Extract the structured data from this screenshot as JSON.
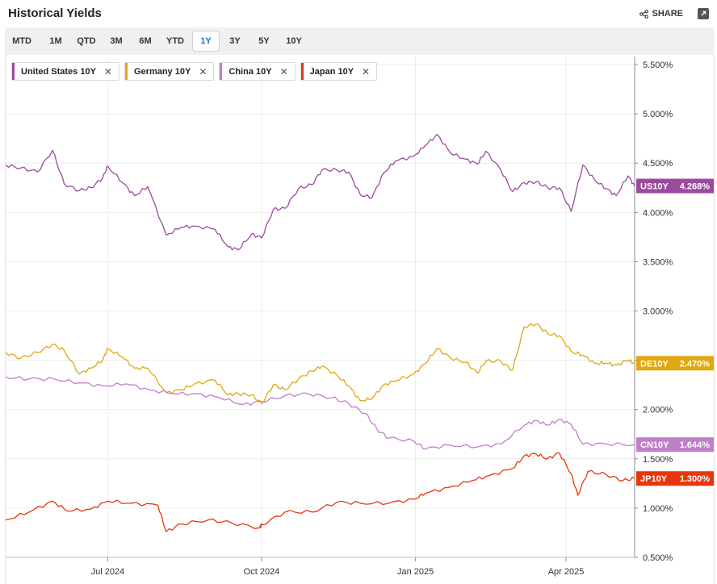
{
  "header": {
    "title": "Historical Yields",
    "share_label": "SHARE"
  },
  "toolbar": {
    "ranges": [
      "MTD",
      "1M",
      "QTD",
      "3M",
      "6M",
      "YTD",
      "1Y",
      "3Y",
      "5Y",
      "10Y"
    ],
    "active": "1Y"
  },
  "legend": [
    {
      "label": "United States 10Y",
      "color": "#9b4a9e"
    },
    {
      "label": "Germany 10Y",
      "color": "#e0a811"
    },
    {
      "label": "China 10Y",
      "color": "#c07fc8"
    },
    {
      "label": "Japan 10Y",
      "color": "#e8360c"
    }
  ],
  "chart_data": {
    "type": "line",
    "x_range": [
      "2024-05-01",
      "2025-05-12"
    ],
    "x_ticks": [
      {
        "date": "2024-07-01",
        "label": "Jul 2024"
      },
      {
        "date": "2024-10-01",
        "label": "Oct 2024"
      },
      {
        "date": "2025-01-01",
        "label": "Jan 2025"
      },
      {
        "date": "2025-04-01",
        "label": "Apr 2025"
      }
    ],
    "y_range": [
      0.5,
      5.5
    ],
    "y_ticks": [
      "0.500%",
      "1.000%",
      "1.500%",
      "2.000%",
      "2.500%",
      "3.000%",
      "3.500%",
      "4.000%",
      "4.500%",
      "5.000%",
      "5.500%"
    ],
    "grid": true,
    "series": [
      {
        "name": "United States 10Y",
        "tag": "US10Y",
        "last_label": "4.268%",
        "last": 4.268,
        "color": "#9b4a9e",
        "points": [
          [
            "2024-05-01",
            4.48
          ],
          [
            "2024-05-10",
            4.45
          ],
          [
            "2024-05-20",
            4.41
          ],
          [
            "2024-05-29",
            4.63
          ],
          [
            "2024-06-05",
            4.29
          ],
          [
            "2024-06-14",
            4.22
          ],
          [
            "2024-06-21",
            4.25
          ],
          [
            "2024-06-28",
            4.35
          ],
          [
            "2024-07-01",
            4.47
          ],
          [
            "2024-07-10",
            4.3
          ],
          [
            "2024-07-17",
            4.17
          ],
          [
            "2024-07-25",
            4.26
          ],
          [
            "2024-08-05",
            3.77
          ],
          [
            "2024-08-14",
            3.85
          ],
          [
            "2024-08-22",
            3.86
          ],
          [
            "2024-09-03",
            3.83
          ],
          [
            "2024-09-11",
            3.65
          ],
          [
            "2024-09-17",
            3.62
          ],
          [
            "2024-09-25",
            3.78
          ],
          [
            "2024-10-01",
            3.74
          ],
          [
            "2024-10-08",
            4.03
          ],
          [
            "2024-10-15",
            4.04
          ],
          [
            "2024-10-23",
            4.24
          ],
          [
            "2024-10-31",
            4.28
          ],
          [
            "2024-11-06",
            4.43
          ],
          [
            "2024-11-15",
            4.43
          ],
          [
            "2024-11-22",
            4.41
          ],
          [
            "2024-11-29",
            4.18
          ],
          [
            "2024-12-06",
            4.15
          ],
          [
            "2024-12-13",
            4.4
          ],
          [
            "2024-12-20",
            4.52
          ],
          [
            "2024-12-31",
            4.57
          ],
          [
            "2025-01-07",
            4.68
          ],
          [
            "2025-01-14",
            4.79
          ],
          [
            "2025-01-22",
            4.6
          ],
          [
            "2025-01-31",
            4.54
          ],
          [
            "2025-02-07",
            4.49
          ],
          [
            "2025-02-12",
            4.62
          ],
          [
            "2025-02-21",
            4.43
          ],
          [
            "2025-02-28",
            4.21
          ],
          [
            "2025-03-07",
            4.3
          ],
          [
            "2025-03-14",
            4.31
          ],
          [
            "2025-03-21",
            4.25
          ],
          [
            "2025-03-28",
            4.25
          ],
          [
            "2025-04-04",
            4.01
          ],
          [
            "2025-04-11",
            4.48
          ],
          [
            "2025-04-18",
            4.33
          ],
          [
            "2025-04-25",
            4.24
          ],
          [
            "2025-05-01",
            4.17
          ],
          [
            "2025-05-08",
            4.37
          ],
          [
            "2025-05-12",
            4.268
          ]
        ]
      },
      {
        "name": "Germany 10Y",
        "tag": "DE10Y",
        "last_label": "2.470%",
        "last": 2.47,
        "color": "#e0a811",
        "points": [
          [
            "2024-05-01",
            2.58
          ],
          [
            "2024-05-10",
            2.52
          ],
          [
            "2024-05-20",
            2.58
          ],
          [
            "2024-05-29",
            2.66
          ],
          [
            "2024-06-05",
            2.6
          ],
          [
            "2024-06-14",
            2.36
          ],
          [
            "2024-06-21",
            2.42
          ],
          [
            "2024-06-28",
            2.5
          ],
          [
            "2024-07-01",
            2.62
          ],
          [
            "2024-07-10",
            2.53
          ],
          [
            "2024-07-17",
            2.42
          ],
          [
            "2024-07-25",
            2.42
          ],
          [
            "2024-08-05",
            2.17
          ],
          [
            "2024-08-14",
            2.2
          ],
          [
            "2024-08-22",
            2.26
          ],
          [
            "2024-09-03",
            2.3
          ],
          [
            "2024-09-11",
            2.15
          ],
          [
            "2024-09-17",
            2.16
          ],
          [
            "2024-09-25",
            2.15
          ],
          [
            "2024-10-01",
            2.06
          ],
          [
            "2024-10-08",
            2.25
          ],
          [
            "2024-10-15",
            2.2
          ],
          [
            "2024-10-23",
            2.31
          ],
          [
            "2024-10-31",
            2.39
          ],
          [
            "2024-11-06",
            2.44
          ],
          [
            "2024-11-15",
            2.35
          ],
          [
            "2024-11-22",
            2.24
          ],
          [
            "2024-11-29",
            2.09
          ],
          [
            "2024-12-06",
            2.11
          ],
          [
            "2024-12-13",
            2.25
          ],
          [
            "2024-12-20",
            2.29
          ],
          [
            "2024-12-31",
            2.36
          ],
          [
            "2025-01-07",
            2.47
          ],
          [
            "2025-01-14",
            2.62
          ],
          [
            "2025-01-22",
            2.52
          ],
          [
            "2025-01-31",
            2.48
          ],
          [
            "2025-02-07",
            2.37
          ],
          [
            "2025-02-12",
            2.49
          ],
          [
            "2025-02-21",
            2.49
          ],
          [
            "2025-02-28",
            2.4
          ],
          [
            "2025-03-07",
            2.84
          ],
          [
            "2025-03-14",
            2.87
          ],
          [
            "2025-03-21",
            2.77
          ],
          [
            "2025-03-28",
            2.75
          ],
          [
            "2025-04-04",
            2.59
          ],
          [
            "2025-04-11",
            2.55
          ],
          [
            "2025-04-18",
            2.47
          ],
          [
            "2025-04-25",
            2.47
          ],
          [
            "2025-05-01",
            2.45
          ],
          [
            "2025-05-08",
            2.5
          ],
          [
            "2025-05-12",
            2.47
          ]
        ]
      },
      {
        "name": "China 10Y",
        "tag": "CN10Y",
        "last_label": "1.644%",
        "last": 1.644,
        "color": "#c07fc8",
        "points": [
          [
            "2024-05-01",
            2.33
          ],
          [
            "2024-05-15",
            2.31
          ],
          [
            "2024-05-30",
            2.31
          ],
          [
            "2024-06-14",
            2.27
          ],
          [
            "2024-06-28",
            2.24
          ],
          [
            "2024-07-12",
            2.26
          ],
          [
            "2024-07-26",
            2.2
          ],
          [
            "2024-08-09",
            2.16
          ],
          [
            "2024-08-23",
            2.16
          ],
          [
            "2024-09-06",
            2.12
          ],
          [
            "2024-09-20",
            2.05
          ],
          [
            "2024-10-01",
            2.08
          ],
          [
            "2024-10-15",
            2.14
          ],
          [
            "2024-10-29",
            2.16
          ],
          [
            "2024-11-12",
            2.12
          ],
          [
            "2024-11-22",
            2.06
          ],
          [
            "2024-12-02",
            1.96
          ],
          [
            "2024-12-09",
            1.8
          ],
          [
            "2024-12-16",
            1.71
          ],
          [
            "2024-12-31",
            1.68
          ],
          [
            "2025-01-07",
            1.6
          ],
          [
            "2025-01-21",
            1.64
          ],
          [
            "2025-02-07",
            1.62
          ],
          [
            "2025-02-21",
            1.65
          ],
          [
            "2025-03-07",
            1.84
          ],
          [
            "2025-03-14",
            1.89
          ],
          [
            "2025-03-21",
            1.84
          ],
          [
            "2025-03-28",
            1.9
          ],
          [
            "2025-04-04",
            1.85
          ],
          [
            "2025-04-11",
            1.65
          ],
          [
            "2025-04-25",
            1.65
          ],
          [
            "2025-05-12",
            1.644
          ]
        ]
      },
      {
        "name": "Japan 10Y",
        "tag": "JP10Y",
        "last_label": "1.300%",
        "last": 1.3,
        "color": "#e8360c",
        "points": [
          [
            "2024-05-01",
            0.88
          ],
          [
            "2024-05-15",
            0.96
          ],
          [
            "2024-05-29",
            1.07
          ],
          [
            "2024-06-07",
            0.97
          ],
          [
            "2024-06-21",
            0.99
          ],
          [
            "2024-07-01",
            1.07
          ],
          [
            "2024-07-15",
            1.05
          ],
          [
            "2024-07-31",
            1.03
          ],
          [
            "2024-08-05",
            0.76
          ],
          [
            "2024-08-14",
            0.84
          ],
          [
            "2024-08-30",
            0.88
          ],
          [
            "2024-09-13",
            0.85
          ],
          [
            "2024-09-30",
            0.8
          ],
          [
            "2024-10-01",
            0.83
          ],
          [
            "2024-10-15",
            0.96
          ],
          [
            "2024-10-31",
            0.96
          ],
          [
            "2024-11-15",
            1.06
          ],
          [
            "2024-11-29",
            1.05
          ],
          [
            "2024-12-16",
            1.05
          ],
          [
            "2024-12-31",
            1.09
          ],
          [
            "2025-01-07",
            1.15
          ],
          [
            "2025-01-21",
            1.21
          ],
          [
            "2025-02-04",
            1.28
          ],
          [
            "2025-02-14",
            1.33
          ],
          [
            "2025-02-28",
            1.4
          ],
          [
            "2025-03-07",
            1.53
          ],
          [
            "2025-03-14",
            1.55
          ],
          [
            "2025-03-21",
            1.5
          ],
          [
            "2025-03-28",
            1.56
          ],
          [
            "2025-04-04",
            1.35
          ],
          [
            "2025-04-08",
            1.13
          ],
          [
            "2025-04-14",
            1.37
          ],
          [
            "2025-04-25",
            1.34
          ],
          [
            "2025-05-05",
            1.28
          ],
          [
            "2025-05-12",
            1.3
          ]
        ]
      }
    ]
  }
}
